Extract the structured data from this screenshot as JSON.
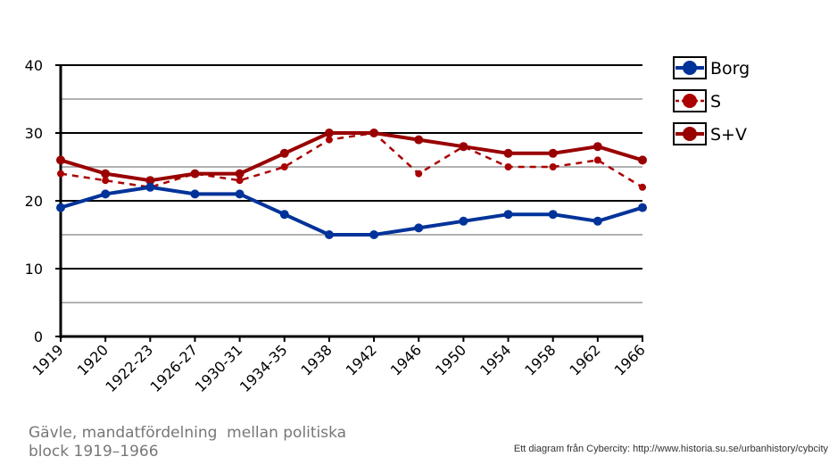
{
  "chart_data": {
    "type": "line",
    "categories": [
      "1919",
      "1920",
      "1922-23",
      "1926-27",
      "1930-31",
      "1934-35",
      "1938",
      "1942",
      "1946",
      "1950",
      "1954",
      "1958",
      "1962",
      "1966"
    ],
    "series": [
      {
        "name": "Borg",
        "values": [
          19,
          21,
          22,
          21,
          21,
          18,
          15,
          15,
          16,
          17,
          18,
          18,
          17,
          19
        ],
        "color": "#003399",
        "style": "solid"
      },
      {
        "name": "S",
        "values": [
          24,
          23,
          22,
          24,
          23,
          25,
          29,
          30,
          24,
          28,
          25,
          25,
          26,
          22
        ],
        "color": "#aa0000",
        "style": "dashed"
      },
      {
        "name": "S+V",
        "values": [
          26,
          24,
          23,
          24,
          24,
          27,
          30,
          30,
          29,
          28,
          27,
          27,
          28,
          26
        ],
        "color": "#990000",
        "style": "solid"
      }
    ],
    "ylim": [
      0,
      40
    ],
    "yticks": [
      "0",
      "10",
      "20",
      "30",
      "40"
    ],
    "grid": true,
    "legend": "top-right"
  },
  "caption": "Gävle, mandatfördelning  mellan politiska block 1919–1966",
  "credit": "Ett diagram från Cybercity: http://www.historia.su.se/urbanhistory/cybcity"
}
